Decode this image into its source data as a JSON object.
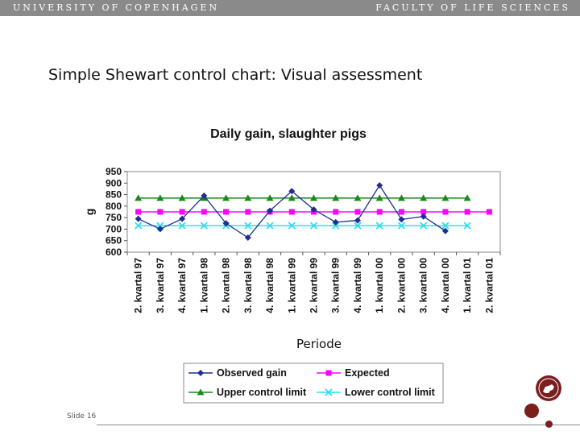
{
  "header": {
    "left_text": "UNIVERSITY OF COPENHAGEN",
    "right_text": "FACULTY OF LIFE SCIENCES"
  },
  "slide": {
    "title": "Simple Shewart control chart: Visual assessment",
    "number": "Slide 16"
  },
  "colors": {
    "header_bar": "#8a8a8a",
    "brand": "#7b1e1e"
  },
  "icons": {
    "seal": "university-seal-icon"
  },
  "chart_data": {
    "type": "line",
    "title": "Daily gain, slaughter pigs",
    "xlabel": "Periode",
    "ylabel": "g",
    "ylim": [
      600,
      950
    ],
    "yticks": [
      600,
      650,
      700,
      750,
      800,
      850,
      900,
      950
    ],
    "grid": false,
    "legend_position": "bottom",
    "categories": [
      "2. kvartal 97",
      "3. kvartal 97",
      "4. kvartal 97",
      "1. kvartal 98",
      "2. kvartal 98",
      "3. kvartal 98",
      "4. kvartal 98",
      "1. kvartal 99",
      "2. kvartal 99",
      "3. kvartal 99",
      "4. kvartal 99",
      "1. kvartal 00",
      "2. kvartal 00",
      "3. kvartal 00",
      "4. kvartal 00",
      "1. kvartal 01",
      "2. kvartal 01"
    ],
    "series": [
      {
        "name": "Observed gain",
        "color": "#1f2f8f",
        "marker": "diamond",
        "values": [
          745,
          700,
          745,
          845,
          725,
          663,
          780,
          865,
          785,
          730,
          738,
          890,
          742,
          755,
          692,
          null,
          null
        ]
      },
      {
        "name": "Expected",
        "color": "#ff00ff",
        "marker": "square",
        "values": [
          775,
          775,
          775,
          775,
          775,
          775,
          775,
          775,
          775,
          775,
          775,
          775,
          775,
          775,
          775,
          775,
          775
        ]
      },
      {
        "name": "Upper control limit",
        "color": "#1a8a1a",
        "marker": "triangle",
        "values": [
          835,
          835,
          835,
          835,
          835,
          835,
          835,
          835,
          835,
          835,
          835,
          835,
          835,
          835,
          835,
          835,
          null
        ]
      },
      {
        "name": "Lower control limit",
        "color": "#33ddee",
        "marker": "x",
        "values": [
          715,
          715,
          715,
          715,
          715,
          715,
          715,
          715,
          715,
          715,
          715,
          715,
          715,
          715,
          715,
          715,
          null
        ]
      }
    ]
  }
}
